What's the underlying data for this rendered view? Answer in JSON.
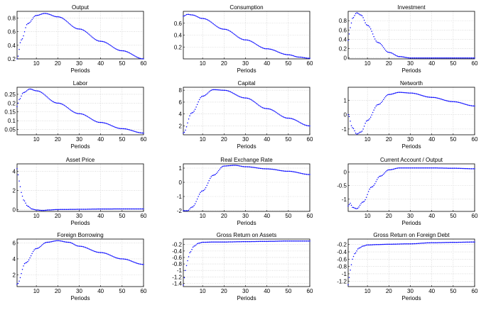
{
  "chart_data": [
    {
      "type": "line",
      "title": "Output",
      "xlabel": "Periods",
      "xlim": [
        1,
        60
      ],
      "ylim": [
        0.2,
        0.9
      ],
      "xticks": [
        10,
        20,
        30,
        40,
        50,
        60
      ],
      "yticks": [
        0.2,
        0.4,
        0.6,
        0.8
      ],
      "ytick_labels": [
        "0.2",
        "0.4",
        "0.6",
        "0.8"
      ],
      "series": [
        {
          "color": "#0000ff",
          "x": [
            1,
            3,
            6,
            10,
            14,
            20,
            30,
            40,
            50,
            60
          ],
          "y": [
            0.2,
            0.48,
            0.72,
            0.84,
            0.87,
            0.82,
            0.64,
            0.46,
            0.32,
            0.2
          ]
        }
      ]
    },
    {
      "type": "line",
      "title": "Consumption",
      "xlabel": "Periods",
      "xlim": [
        1,
        60
      ],
      "ylim": [
        0,
        0.8
      ],
      "xticks": [
        10,
        20,
        30,
        40,
        50,
        60
      ],
      "yticks": [
        0.2,
        0.4,
        0.6
      ],
      "ytick_labels": [
        "0.2",
        "0.4",
        "0.6"
      ],
      "series": [
        {
          "color": "#0000ff",
          "x": [
            1,
            3,
            5,
            10,
            20,
            30,
            40,
            50,
            55,
            60
          ],
          "y": [
            0.72,
            0.75,
            0.74,
            0.68,
            0.5,
            0.32,
            0.17,
            0.07,
            0.03,
            0.01
          ]
        }
      ]
    },
    {
      "type": "line",
      "title": "Investment",
      "xlabel": "Periods",
      "xlim": [
        1,
        60
      ],
      "ylim": [
        -0.02,
        1.0
      ],
      "xticks": [
        10,
        20,
        30,
        40,
        50,
        60
      ],
      "yticks": [
        0,
        0.2,
        0.4,
        0.6,
        0.8
      ],
      "ytick_labels": [
        "0",
        "0.2",
        "0.4",
        "0.6",
        "0.8"
      ],
      "series": [
        {
          "color": "#0000ff",
          "x": [
            1,
            2,
            3,
            5,
            7,
            10,
            15,
            20,
            25,
            30,
            40,
            60
          ],
          "y": [
            0.38,
            0.65,
            0.85,
            0.97,
            0.92,
            0.7,
            0.33,
            0.12,
            0.03,
            0.0,
            0.0,
            0.0
          ]
        }
      ]
    },
    {
      "type": "line",
      "title": "Labor",
      "xlabel": "Periods",
      "xlim": [
        1,
        60
      ],
      "ylim": [
        0.02,
        0.29
      ],
      "xticks": [
        10,
        20,
        30,
        40,
        50,
        60
      ],
      "yticks": [
        0.05,
        0.1,
        0.15,
        0.2,
        0.25
      ],
      "ytick_labels": [
        "0.05",
        "0.1",
        "0.15",
        "0.2",
        "0.25"
      ],
      "series": [
        {
          "color": "#0000ff",
          "x": [
            1,
            2,
            4,
            7,
            10,
            20,
            30,
            40,
            50,
            60
          ],
          "y": [
            0.18,
            0.22,
            0.26,
            0.28,
            0.27,
            0.2,
            0.14,
            0.09,
            0.055,
            0.03
          ]
        }
      ]
    },
    {
      "type": "line",
      "title": "Capital",
      "xlabel": "Periods",
      "xlim": [
        1,
        60
      ],
      "ylim": [
        0.5,
        8.5
      ],
      "xticks": [
        10,
        20,
        30,
        40,
        50,
        60
      ],
      "yticks": [
        2,
        4,
        6,
        8
      ],
      "ytick_labels": [
        "2",
        "4",
        "6",
        "8"
      ],
      "series": [
        {
          "color": "#0000ff",
          "x": [
            1,
            5,
            10,
            15,
            20,
            30,
            40,
            50,
            60
          ],
          "y": [
            0.8,
            4.2,
            7.0,
            8.1,
            8.0,
            6.7,
            4.9,
            3.3,
            2.0
          ]
        }
      ]
    },
    {
      "type": "line",
      "title": "Networth",
      "xlabel": "Periods",
      "xlim": [
        1,
        60
      ],
      "ylim": [
        -1.4,
        1.9
      ],
      "xticks": [
        10,
        20,
        30,
        40,
        50,
        60
      ],
      "yticks": [
        -1,
        0,
        1
      ],
      "ytick_labels": [
        "-1",
        "0",
        "1"
      ],
      "series": [
        {
          "color": "#0000ff",
          "x": [
            1,
            3,
            5,
            7,
            10,
            15,
            20,
            25,
            30,
            40,
            50,
            60
          ],
          "y": [
            0.0,
            -0.9,
            -1.35,
            -1.2,
            -0.4,
            0.7,
            1.4,
            1.55,
            1.5,
            1.2,
            0.9,
            0.6
          ]
        }
      ]
    },
    {
      "type": "line",
      "title": "Asset Price",
      "xlabel": "Periods",
      "xlim": [
        1,
        60
      ],
      "ylim": [
        -0.2,
        4.8
      ],
      "xticks": [
        10,
        20,
        30,
        40,
        50,
        60
      ],
      "yticks": [
        0,
        2,
        4
      ],
      "ytick_labels": [
        "0",
        "2",
        "4"
      ],
      "series": [
        {
          "color": "#0000ff",
          "x": [
            1,
            2,
            3,
            4,
            6,
            8,
            10,
            13,
            16,
            20,
            30,
            40,
            50,
            60
          ],
          "y": [
            4.3,
            3.0,
            1.8,
            1.0,
            0.35,
            0.05,
            -0.05,
            -0.1,
            -0.05,
            0.0,
            0.02,
            0.05,
            0.06,
            0.06
          ]
        }
      ]
    },
    {
      "type": "line",
      "title": "Real Exchange Rate",
      "xlabel": "Periods",
      "xlim": [
        1,
        60
      ],
      "ylim": [
        -2.05,
        1.3
      ],
      "xticks": [
        10,
        20,
        30,
        40,
        50,
        60
      ],
      "yticks": [
        -2,
        -1,
        0,
        1
      ],
      "ytick_labels": [
        "-2",
        "-1",
        "0",
        "1"
      ],
      "series": [
        {
          "color": "#0000ff",
          "x": [
            1,
            3,
            5,
            10,
            15,
            20,
            25,
            30,
            40,
            50,
            60
          ],
          "y": [
            -2.0,
            -2.0,
            -1.75,
            -0.6,
            0.5,
            1.15,
            1.2,
            1.1,
            0.95,
            0.78,
            0.55
          ]
        }
      ]
    },
    {
      "type": "line",
      "title": "Current Account / Output",
      "xlabel": "Periods",
      "xlim": [
        1,
        60
      ],
      "ylim": [
        -1.45,
        0.3
      ],
      "xticks": [
        10,
        20,
        30,
        40,
        50,
        60
      ],
      "yticks": [
        -1,
        -0.5,
        0
      ],
      "ytick_labels": [
        "-1",
        "-0.5",
        "0"
      ],
      "series": [
        {
          "color": "#0000ff",
          "x": [
            1,
            2,
            3,
            5,
            8,
            12,
            16,
            20,
            25,
            30,
            40,
            50,
            60
          ],
          "y": [
            -1.25,
            -1.15,
            -1.3,
            -1.35,
            -1.1,
            -0.55,
            -0.15,
            0.08,
            0.15,
            0.15,
            0.15,
            0.14,
            0.12
          ]
        }
      ]
    },
    {
      "type": "line",
      "title": "Foreign Borrowing",
      "xlabel": "Periods",
      "xlim": [
        1,
        60
      ],
      "ylim": [
        0.5,
        6.5
      ],
      "xticks": [
        10,
        20,
        30,
        40,
        50,
        60
      ],
      "yticks": [
        2,
        4,
        6
      ],
      "ytick_labels": [
        "2",
        "4",
        "6"
      ],
      "series": [
        {
          "color": "#0000ff",
          "x": [
            1,
            5,
            10,
            15,
            20,
            25,
            30,
            40,
            50,
            60
          ],
          "y": [
            0.8,
            3.5,
            5.3,
            6.1,
            6.3,
            6.1,
            5.6,
            4.8,
            4.0,
            3.3
          ]
        }
      ]
    },
    {
      "type": "line",
      "title": "Gross Return on Assets",
      "xlabel": "Periods",
      "xlim": [
        1,
        60
      ],
      "ylim": [
        -1.5,
        -0.03
      ],
      "xticks": [
        10,
        20,
        30,
        40,
        50,
        60
      ],
      "yticks": [
        -1.4,
        -1.2,
        -1,
        -0.8,
        -0.6,
        -0.4,
        -0.2
      ],
      "ytick_labels": [
        "-1.4",
        "-1.2",
        "-1",
        "-0.8",
        "-0.6",
        "-0.4",
        "-0.2"
      ],
      "series": [
        {
          "color": "#0000ff",
          "x": [
            1,
            2,
            3,
            4,
            6,
            8,
            10,
            15,
            20,
            30,
            40,
            50,
            60
          ],
          "y": [
            -1.45,
            -1.0,
            -0.7,
            -0.45,
            -0.25,
            -0.16,
            -0.13,
            -0.12,
            -0.12,
            -0.11,
            -0.1,
            -0.09,
            -0.09
          ]
        }
      ]
    },
    {
      "type": "line",
      "title": "Gross Return on Foreign Debt",
      "xlabel": "Periods",
      "xlim": [
        1,
        60
      ],
      "ylim": [
        -1.35,
        -0.05
      ],
      "xticks": [
        10,
        20,
        30,
        40,
        50,
        60
      ],
      "yticks": [
        -1.2,
        -1,
        -0.8,
        -0.6,
        -0.4,
        -0.2
      ],
      "ytick_labels": [
        "-1.2",
        "-1",
        "-0.8",
        "-0.6",
        "-0.4",
        "-0.2"
      ],
      "series": [
        {
          "color": "#0000ff",
          "x": [
            1,
            2,
            3,
            4,
            6,
            8,
            10,
            15,
            20,
            30,
            40,
            50,
            60
          ],
          "y": [
            -1.3,
            -0.9,
            -0.6,
            -0.45,
            -0.3,
            -0.24,
            -0.21,
            -0.2,
            -0.19,
            -0.18,
            -0.15,
            -0.14,
            -0.13
          ]
        }
      ]
    }
  ]
}
